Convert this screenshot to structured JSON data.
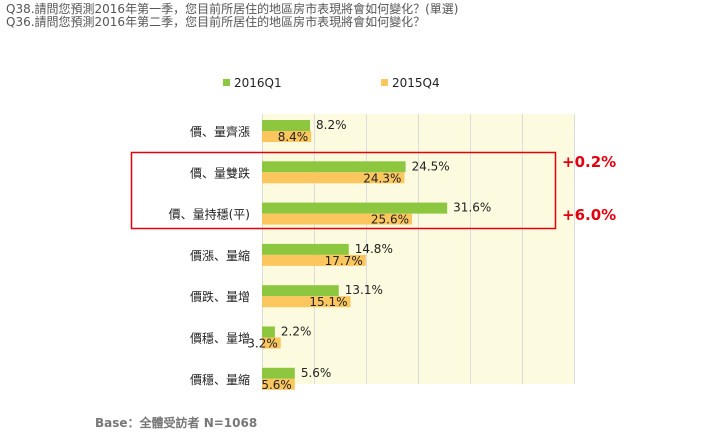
{
  "header": {
    "line1": "Q38.請問您預測2016年第一季，您目前所居住的地區房市表現將會如何變化？(單選)",
    "line2": "Q36.請問您預測2016年第二季，您目前所居住的地區房市表現將會如何變化？"
  },
  "footer": {
    "base": "Base：全體受訪者 N=1068"
  },
  "colors": {
    "q1": "#8dc63f",
    "q4": "#fcc65f",
    "highlight": "#e3000f",
    "plot_bg": "#fcfbdf"
  },
  "chart_data": {
    "type": "bar",
    "orientation": "horizontal",
    "categories": [
      "價、量齊漲",
      "價、量雙跌",
      "價、量持穩(平)",
      "價漲、量縮",
      "價跌、量增",
      "價穩、量增",
      "價穩、量縮"
    ],
    "series": [
      {
        "name": "2016Q1",
        "values": [
          8.2,
          24.5,
          31.6,
          14.8,
          13.1,
          2.2,
          5.6
        ]
      },
      {
        "name": "2015Q4",
        "values": [
          8.4,
          24.3,
          25.6,
          17.7,
          15.1,
          3.2,
          5.6
        ]
      }
    ],
    "value_labels": {
      "2016Q1": [
        "8.2%",
        "24.5%",
        "31.6%",
        "14.8%",
        "13.1%",
        "2.2%",
        "5.6%"
      ],
      "2015Q4": [
        "8.4%",
        "24.3%",
        "25.6%",
        "17.7%",
        "15.1%",
        "3.2%",
        "5.6%"
      ]
    },
    "annotations": [
      "+0.2%",
      "+6.0%"
    ],
    "legend_position": "top",
    "grid": true
  }
}
